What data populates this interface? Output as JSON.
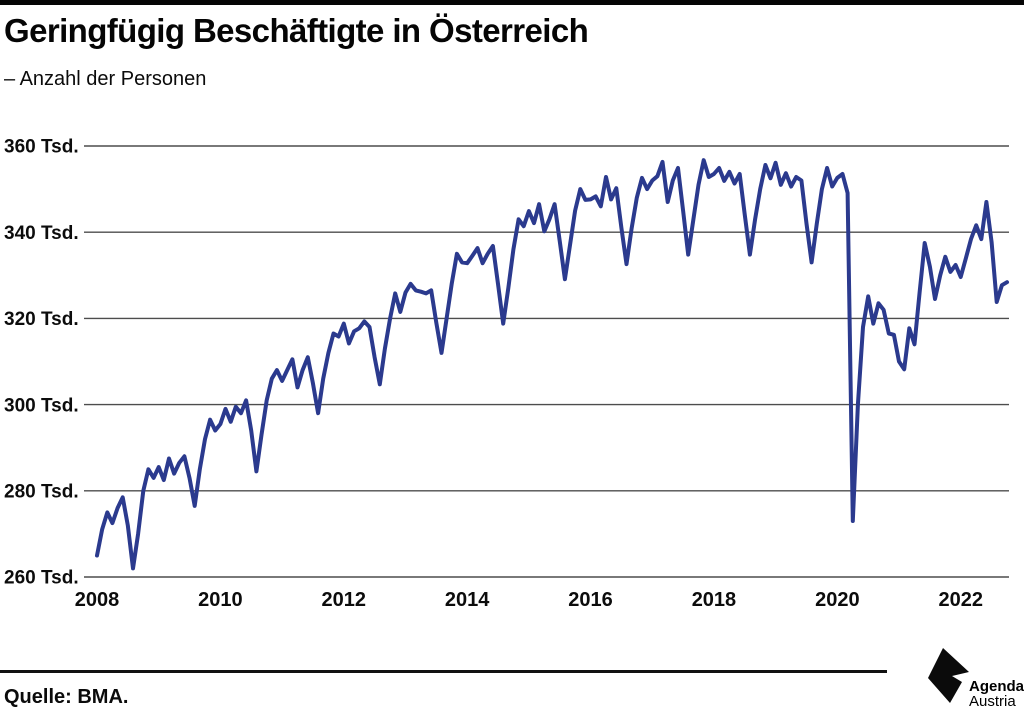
{
  "page": {
    "title": "Geringfügig Beschäftigte in Österreich",
    "subtitle": "– Anzahl der Personen",
    "source": "Quelle: BMA.",
    "logo": {
      "line1": "Agenda",
      "line2": "Austria"
    }
  },
  "chart_data": {
    "type": "line",
    "title": "Geringfügig Beschäftigte in Österreich",
    "subtitle": "– Anzahl der Personen",
    "unit": "Tsd. Personen",
    "frequency": "monthly",
    "x_start": "2008-01",
    "x_end": "2022-10",
    "x_tick_years": [
      "2008",
      "2010",
      "2012",
      "2014",
      "2016",
      "2018",
      "2020",
      "2022"
    ],
    "y_ticks": [
      260,
      280,
      300,
      320,
      340,
      360
    ],
    "y_tick_suffix": " Tsd.",
    "ylim": [
      260,
      360
    ],
    "grid": true,
    "line_color": "#2b3a8e",
    "grid_color": "#4d4d4d",
    "series": [
      {
        "name": "Geringfügig Beschäftigte in Österreich (Tsd. Personen, monatlich)",
        "values": [
          265.0,
          271.0,
          275.0,
          272.5,
          276.0,
          278.5,
          272.0,
          262.0,
          270.0,
          280.0,
          285.0,
          283.0,
          285.5,
          282.5,
          287.5,
          284.0,
          286.5,
          288.0,
          283.0,
          276.5,
          285.0,
          292.0,
          296.5,
          294.0,
          295.5,
          299.0,
          296.0,
          299.5,
          298.0,
          301.0,
          294.0,
          284.5,
          293.0,
          301.0,
          306.0,
          308.0,
          305.5,
          308.0,
          310.5,
          304.0,
          308.0,
          311.0,
          305.0,
          298.0,
          306.0,
          312.0,
          316.5,
          315.8,
          318.8,
          314.2,
          317.0,
          317.7,
          319.3,
          318.0,
          311.0,
          304.7,
          313.0,
          320.0,
          325.8,
          321.5,
          326.0,
          328.0,
          326.5,
          326.2,
          325.8,
          326.5,
          319.0,
          312.0,
          320.0,
          328.0,
          335.0,
          333.0,
          332.8,
          334.5,
          336.3,
          332.8,
          335.0,
          336.8,
          328.0,
          318.8,
          327.0,
          336.0,
          343.0,
          341.4,
          344.9,
          342.1,
          346.5,
          340.2,
          343.0,
          346.5,
          338.0,
          329.1,
          337.0,
          345.0,
          350.0,
          347.5,
          347.6,
          348.3,
          346.0,
          352.8,
          347.6,
          350.2,
          341.0,
          332.6,
          341.0,
          348.0,
          352.6,
          350.0,
          352.0,
          353.0,
          356.3,
          347.0,
          352.0,
          354.9,
          345.0,
          334.8,
          343.0,
          351.0,
          356.7,
          352.8,
          353.5,
          354.9,
          351.9,
          354.0,
          351.3,
          353.5,
          344.0,
          334.8,
          343.0,
          350.0,
          355.6,
          352.5,
          356.1,
          351.0,
          353.7,
          350.6,
          352.8,
          352.0,
          342.0,
          333.0,
          342.0,
          350.0,
          354.9,
          350.6,
          352.6,
          353.5,
          349.1,
          273.0,
          300.0,
          318.0,
          325.1,
          318.8,
          323.5,
          322.0,
          316.5,
          316.2,
          310.0,
          308.2,
          317.7,
          314.0,
          326.0,
          337.5,
          332.0,
          324.5,
          330.0,
          334.3,
          330.8,
          332.4,
          329.6,
          334.0,
          338.4,
          341.6,
          338.4,
          347.0,
          337.7,
          323.8,
          327.7,
          328.4
        ]
      }
    ]
  }
}
